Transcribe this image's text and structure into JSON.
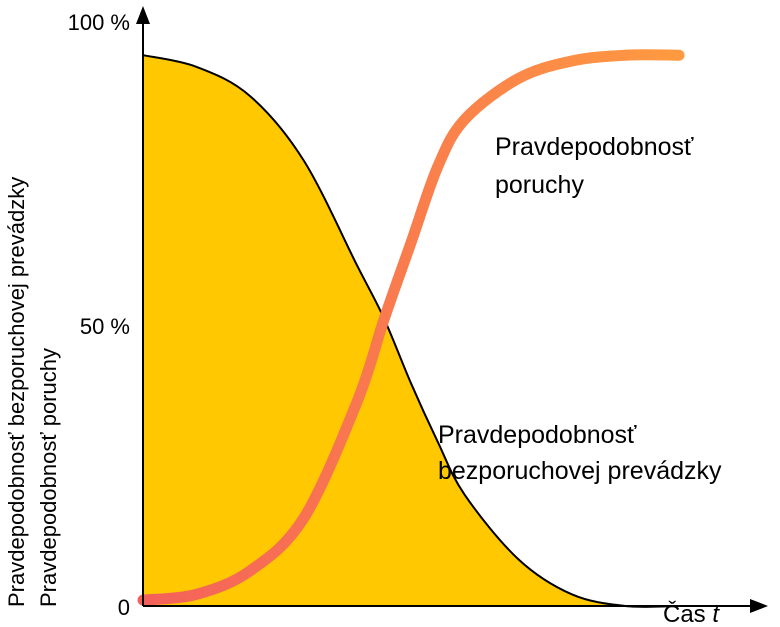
{
  "chart_data": {
    "type": "area",
    "xlabel_prefix": "Čas ",
    "xlabel_var": "t",
    "ylabel_lines": [
      "Pravdepodobnosť bezporuchovej prevádzky",
      "Pravdepodobnosť poruchy"
    ],
    "y_ticks": [
      {
        "value": 0,
        "label": "0"
      },
      {
        "value": 50,
        "label": "50 %"
      },
      {
        "value": 100,
        "label": "100 %"
      }
    ],
    "ylim": [
      0,
      100
    ],
    "xlim": [
      0,
      100
    ],
    "grid": false,
    "series": [
      {
        "key": "reliability",
        "name_lines": [
          "Pravdepodobnosť",
          "bezporuchovej prevádzky"
        ],
        "style": "filled-area",
        "fill": "#FFC800",
        "stroke": "#000000",
        "x": [
          0,
          10,
          20,
          30,
          40,
          45,
          50,
          55,
          60,
          70,
          80,
          90,
          100
        ],
        "y": [
          94,
          92,
          87,
          76,
          58,
          49,
          38,
          28,
          19,
          8,
          2,
          0,
          0
        ]
      },
      {
        "key": "failure",
        "name_lines": [
          "Pravdepodobnosť",
          "poruchy"
        ],
        "style": "thick-line",
        "stroke_start": "#F4605A",
        "stroke_end": "#FF9A40",
        "x": [
          0,
          10,
          20,
          30,
          40,
          45,
          50,
          55,
          60,
          70,
          80,
          90,
          100
        ],
        "y": [
          1,
          2,
          6,
          15,
          35,
          49,
          62,
          75,
          83,
          90,
          93,
          94,
          94
        ]
      }
    ]
  }
}
